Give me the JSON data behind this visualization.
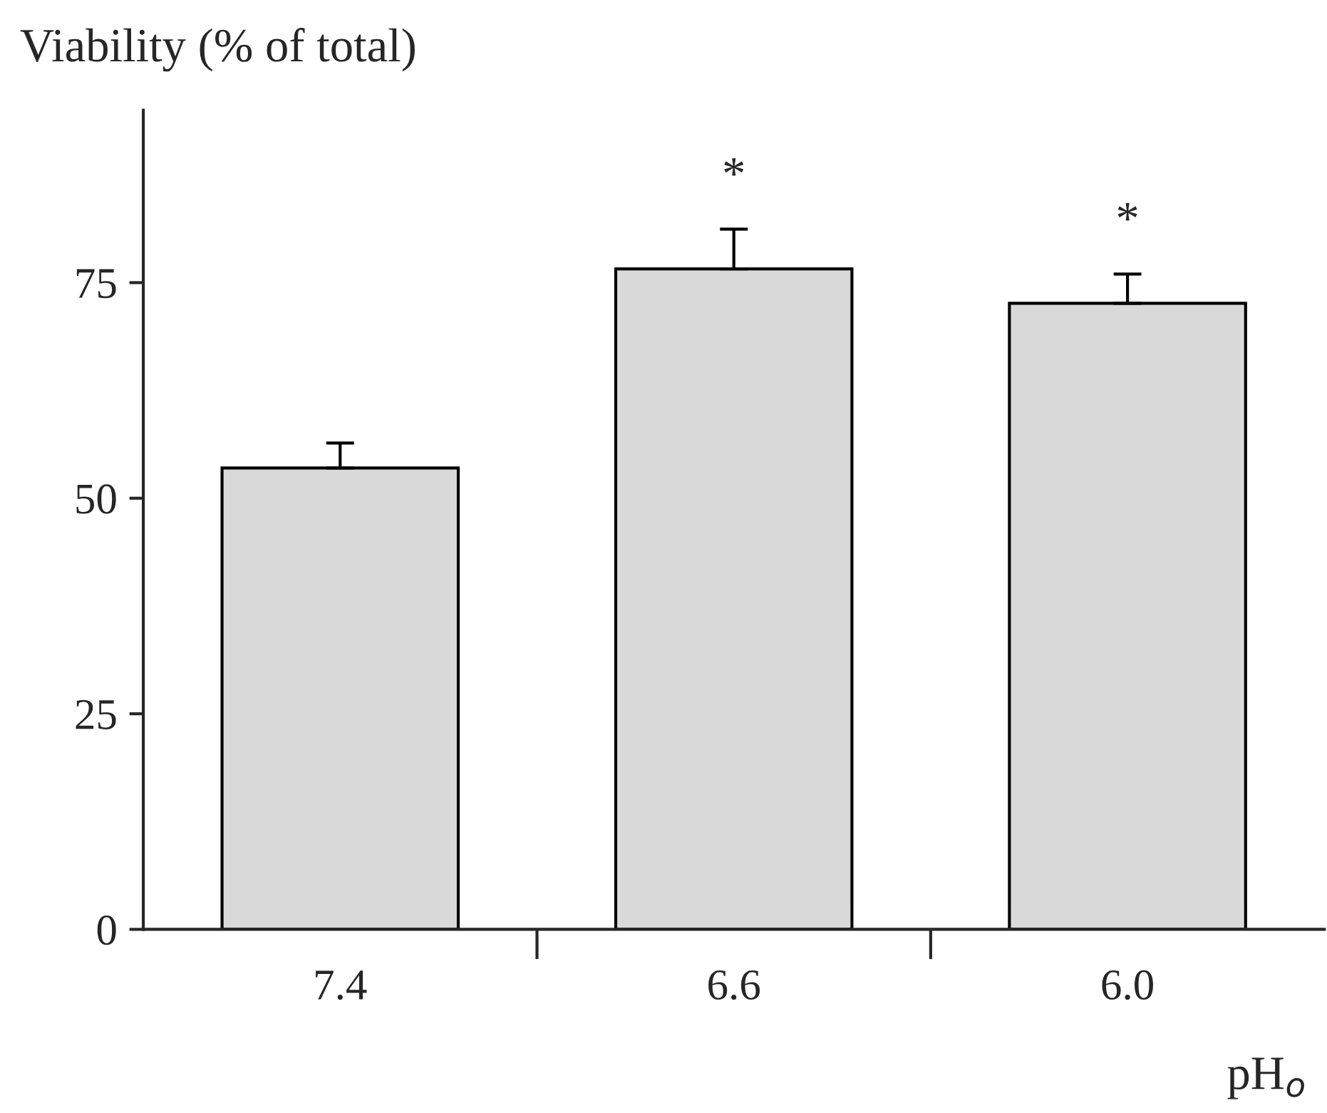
{
  "chart_data": {
    "type": "bar",
    "ylabel": "Viability (% of total)",
    "xlabel": "pH$_{o}$",
    "categories": [
      "7.4",
      "6.6",
      "6.0"
    ],
    "values": [
      53.5,
      76.6,
      72.6
    ],
    "errors": [
      [
        53.5,
        56.4
      ],
      [
        76.6,
        81.2
      ],
      [
        72.6,
        76.0
      ]
    ],
    "color": "#d9d9d9",
    "ylim": [
      0,
      95
    ],
    "yticks": [
      0,
      25,
      50,
      75
    ],
    "annotations": [
      {
        "text": "*",
        "x": "6.6",
        "y": 81.2
      },
      {
        "text": "*",
        "x": "6.0",
        "y": 76.0
      }
    ],
    "grid": false,
    "legend": false
  }
}
